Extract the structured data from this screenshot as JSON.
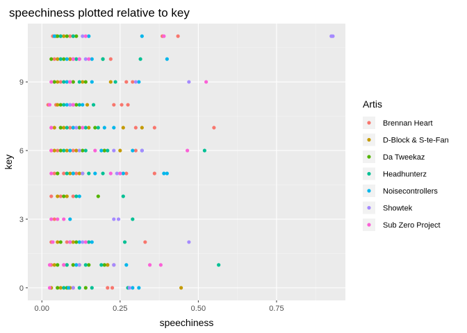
{
  "chart_data": {
    "type": "scatter",
    "title": "speechiness plotted relative to key",
    "xlabel": "speechiness",
    "ylabel": "key",
    "xlim": [
      -0.045,
      0.97
    ],
    "ylim": [
      -0.55,
      11.55
    ],
    "x_ticks": [
      0.0,
      0.25,
      0.5,
      0.75
    ],
    "x_tick_labels": [
      "0.00",
      "0.25",
      "0.50",
      "0.75"
    ],
    "y_ticks": [
      0,
      3,
      6,
      9
    ],
    "y_tick_labels": [
      "0",
      "3",
      "6",
      "9"
    ],
    "grid": true,
    "legend": {
      "title": "Artis",
      "position": "right"
    },
    "series": [
      {
        "name": "Brennan Heart",
        "color": "#F8766D",
        "points": [
          [
            0.035,
            11
          ],
          [
            0.06,
            11
          ],
          [
            0.09,
            11
          ],
          [
            0.385,
            11
          ],
          [
            0.435,
            11
          ],
          [
            0.04,
            10
          ],
          [
            0.09,
            10
          ],
          [
            0.22,
            10
          ],
          [
            0.04,
            9
          ],
          [
            0.06,
            9
          ],
          [
            0.1,
            9
          ],
          [
            0.27,
            9
          ],
          [
            0.29,
            9
          ],
          [
            0.02,
            8
          ],
          [
            0.045,
            8
          ],
          [
            0.09,
            8
          ],
          [
            0.23,
            8
          ],
          [
            0.255,
            8
          ],
          [
            0.275,
            8
          ],
          [
            0.03,
            7
          ],
          [
            0.06,
            7
          ],
          [
            0.09,
            7
          ],
          [
            0.12,
            7
          ],
          [
            0.3,
            7
          ],
          [
            0.36,
            7
          ],
          [
            0.55,
            7
          ],
          [
            0.03,
            6
          ],
          [
            0.05,
            6
          ],
          [
            0.1,
            6
          ],
          [
            0.2,
            6
          ],
          [
            0.3,
            6
          ],
          [
            0.04,
            5
          ],
          [
            0.07,
            5
          ],
          [
            0.11,
            5
          ],
          [
            0.27,
            5
          ],
          [
            0.36,
            5
          ],
          [
            0.03,
            4
          ],
          [
            0.06,
            4
          ],
          [
            0.1,
            4
          ],
          [
            0.04,
            3
          ],
          [
            0.03,
            2
          ],
          [
            0.08,
            2
          ],
          [
            0.33,
            2
          ],
          [
            0.03,
            1
          ],
          [
            0.07,
            1
          ],
          [
            0.1,
            1
          ],
          [
            0.21,
            1
          ],
          [
            0.23,
            1
          ],
          [
            0.05,
            0
          ],
          [
            0.1,
            0
          ],
          [
            0.21,
            0
          ],
          [
            0.225,
            0
          ]
        ]
      },
      {
        "name": "D-Block & S-te-Fan",
        "color": "#C49A00",
        "points": [
          [
            0.045,
            11
          ],
          [
            0.07,
            11
          ],
          [
            0.1,
            11
          ],
          [
            0.05,
            10
          ],
          [
            0.09,
            10
          ],
          [
            0.05,
            9
          ],
          [
            0.08,
            9
          ],
          [
            0.13,
            9
          ],
          [
            0.22,
            9
          ],
          [
            0.05,
            8
          ],
          [
            0.1,
            8
          ],
          [
            0.145,
            8
          ],
          [
            0.04,
            7
          ],
          [
            0.07,
            7
          ],
          [
            0.1,
            7
          ],
          [
            0.15,
            7
          ],
          [
            0.26,
            7
          ],
          [
            0.32,
            7
          ],
          [
            0.04,
            6
          ],
          [
            0.08,
            6
          ],
          [
            0.11,
            6
          ],
          [
            0.25,
            6
          ],
          [
            0.05,
            5
          ],
          [
            0.09,
            5
          ],
          [
            0.12,
            5
          ],
          [
            0.05,
            4
          ],
          [
            0.08,
            4
          ],
          [
            0.05,
            2
          ],
          [
            0.1,
            2
          ],
          [
            0.04,
            1
          ],
          [
            0.08,
            1
          ],
          [
            0.12,
            1
          ],
          [
            0.21,
            1
          ],
          [
            0.03,
            0
          ],
          [
            0.06,
            0
          ],
          [
            0.09,
            0
          ],
          [
            0.445,
            0
          ]
        ]
      },
      {
        "name": "Da Tweekaz",
        "color": "#53B400",
        "points": [
          [
            0.05,
            11
          ],
          [
            0.08,
            11
          ],
          [
            0.11,
            11
          ],
          [
            0.03,
            10
          ],
          [
            0.07,
            10
          ],
          [
            0.1,
            10
          ],
          [
            0.195,
            10
          ],
          [
            0.04,
            9
          ],
          [
            0.1,
            9
          ],
          [
            0.14,
            9
          ],
          [
            0.06,
            8
          ],
          [
            0.11,
            8
          ],
          [
            0.06,
            7
          ],
          [
            0.12,
            7
          ],
          [
            0.17,
            7
          ],
          [
            0.06,
            6
          ],
          [
            0.13,
            6
          ],
          [
            0.2,
            6
          ],
          [
            0.05,
            5
          ],
          [
            0.1,
            5
          ],
          [
            0.13,
            5
          ],
          [
            0.07,
            4
          ],
          [
            0.18,
            4
          ],
          [
            0.06,
            2
          ],
          [
            0.11,
            2
          ],
          [
            0.05,
            1
          ],
          [
            0.1,
            1
          ],
          [
            0.15,
            1
          ],
          [
            0.2,
            1
          ],
          [
            0.05,
            0
          ],
          [
            0.08,
            0
          ],
          [
            0.14,
            0
          ]
        ]
      },
      {
        "name": "Headhunterz",
        "color": "#00C094",
        "points": [
          [
            0.06,
            11
          ],
          [
            0.1,
            11
          ],
          [
            0.06,
            10
          ],
          [
            0.11,
            10
          ],
          [
            0.195,
            10
          ],
          [
            0.315,
            10
          ],
          [
            0.07,
            9
          ],
          [
            0.12,
            9
          ],
          [
            0.235,
            9
          ],
          [
            0.07,
            8
          ],
          [
            0.12,
            8
          ],
          [
            0.165,
            8
          ],
          [
            0.08,
            7
          ],
          [
            0.14,
            7
          ],
          [
            0.18,
            7
          ],
          [
            0.07,
            6
          ],
          [
            0.14,
            6
          ],
          [
            0.21,
            6
          ],
          [
            0.52,
            6
          ],
          [
            0.08,
            5
          ],
          [
            0.15,
            5
          ],
          [
            0.195,
            5
          ],
          [
            0.25,
            5
          ],
          [
            0.11,
            4
          ],
          [
            0.26,
            4
          ],
          [
            0.29,
            3
          ],
          [
            0.09,
            2
          ],
          [
            0.15,
            2
          ],
          [
            0.265,
            2
          ],
          [
            0.08,
            1
          ],
          [
            0.14,
            1
          ],
          [
            0.19,
            1
          ],
          [
            0.565,
            1
          ],
          [
            0.07,
            0
          ],
          [
            0.12,
            0
          ],
          [
            0.16,
            0
          ],
          [
            0.275,
            0
          ]
        ]
      },
      {
        "name": "Noisecontrollers",
        "color": "#00B6EB",
        "points": [
          [
            0.04,
            11
          ],
          [
            0.15,
            11
          ],
          [
            0.32,
            11
          ],
          [
            0.08,
            10
          ],
          [
            0.16,
            10
          ],
          [
            0.4,
            10
          ],
          [
            0.08,
            9
          ],
          [
            0.16,
            9
          ],
          [
            0.31,
            9
          ],
          [
            0.08,
            8
          ],
          [
            0.13,
            8
          ],
          [
            0.1,
            7
          ],
          [
            0.2,
            7
          ],
          [
            0.23,
            7
          ],
          [
            0.09,
            6
          ],
          [
            0.19,
            6
          ],
          [
            0.29,
            6
          ],
          [
            0.32,
            6
          ],
          [
            0.1,
            5
          ],
          [
            0.17,
            5
          ],
          [
            0.26,
            5
          ],
          [
            0.39,
            5
          ],
          [
            0.4,
            5
          ],
          [
            0.12,
            4
          ],
          [
            0.09,
            3
          ],
          [
            0.12,
            2
          ],
          [
            0.16,
            2
          ],
          [
            0.11,
            1
          ],
          [
            0.27,
            1
          ],
          [
            0.085,
            0
          ],
          [
            0.29,
            0
          ],
          [
            0.31,
            0
          ]
        ]
      },
      {
        "name": "Showtek",
        "color": "#A58AFF",
        "points": [
          [
            0.925,
            11
          ],
          [
            0.93,
            11
          ],
          [
            0.13,
            11
          ],
          [
            0.12,
            10
          ],
          [
            0.14,
            10
          ],
          [
            0.09,
            9
          ],
          [
            0.3,
            9
          ],
          [
            0.47,
            9
          ],
          [
            0.09,
            8
          ],
          [
            0.11,
            7
          ],
          [
            0.12,
            6
          ],
          [
            0.23,
            6
          ],
          [
            0.32,
            6
          ],
          [
            0.13,
            5
          ],
          [
            0.24,
            5
          ],
          [
            0.23,
            3
          ],
          [
            0.245,
            3
          ],
          [
            0.13,
            2
          ],
          [
            0.47,
            2
          ],
          [
            0.12,
            1
          ],
          [
            0.23,
            1
          ],
          [
            0.1,
            0
          ],
          [
            0.28,
            0
          ]
        ]
      },
      {
        "name": "Sub Zero Project",
        "color": "#FB61D7",
        "points": [
          [
            0.14,
            11
          ],
          [
            0.39,
            11
          ],
          [
            0.1,
            10
          ],
          [
            0.12,
            10
          ],
          [
            0.15,
            10
          ],
          [
            0.03,
            9
          ],
          [
            0.09,
            9
          ],
          [
            0.525,
            9
          ],
          [
            0.025,
            8
          ],
          [
            0.1,
            8
          ],
          [
            0.03,
            7
          ],
          [
            0.13,
            7
          ],
          [
            0.03,
            6
          ],
          [
            0.17,
            6
          ],
          [
            0.465,
            6
          ],
          [
            0.03,
            5
          ],
          [
            0.22,
            5
          ],
          [
            0.25,
            5
          ],
          [
            0.03,
            3
          ],
          [
            0.05,
            3
          ],
          [
            0.07,
            3
          ],
          [
            0.035,
            2
          ],
          [
            0.09,
            2
          ],
          [
            0.14,
            2
          ],
          [
            0.025,
            1
          ],
          [
            0.07,
            1
          ],
          [
            0.345,
            1
          ],
          [
            0.38,
            1
          ],
          [
            0.025,
            0
          ]
        ]
      }
    ]
  }
}
